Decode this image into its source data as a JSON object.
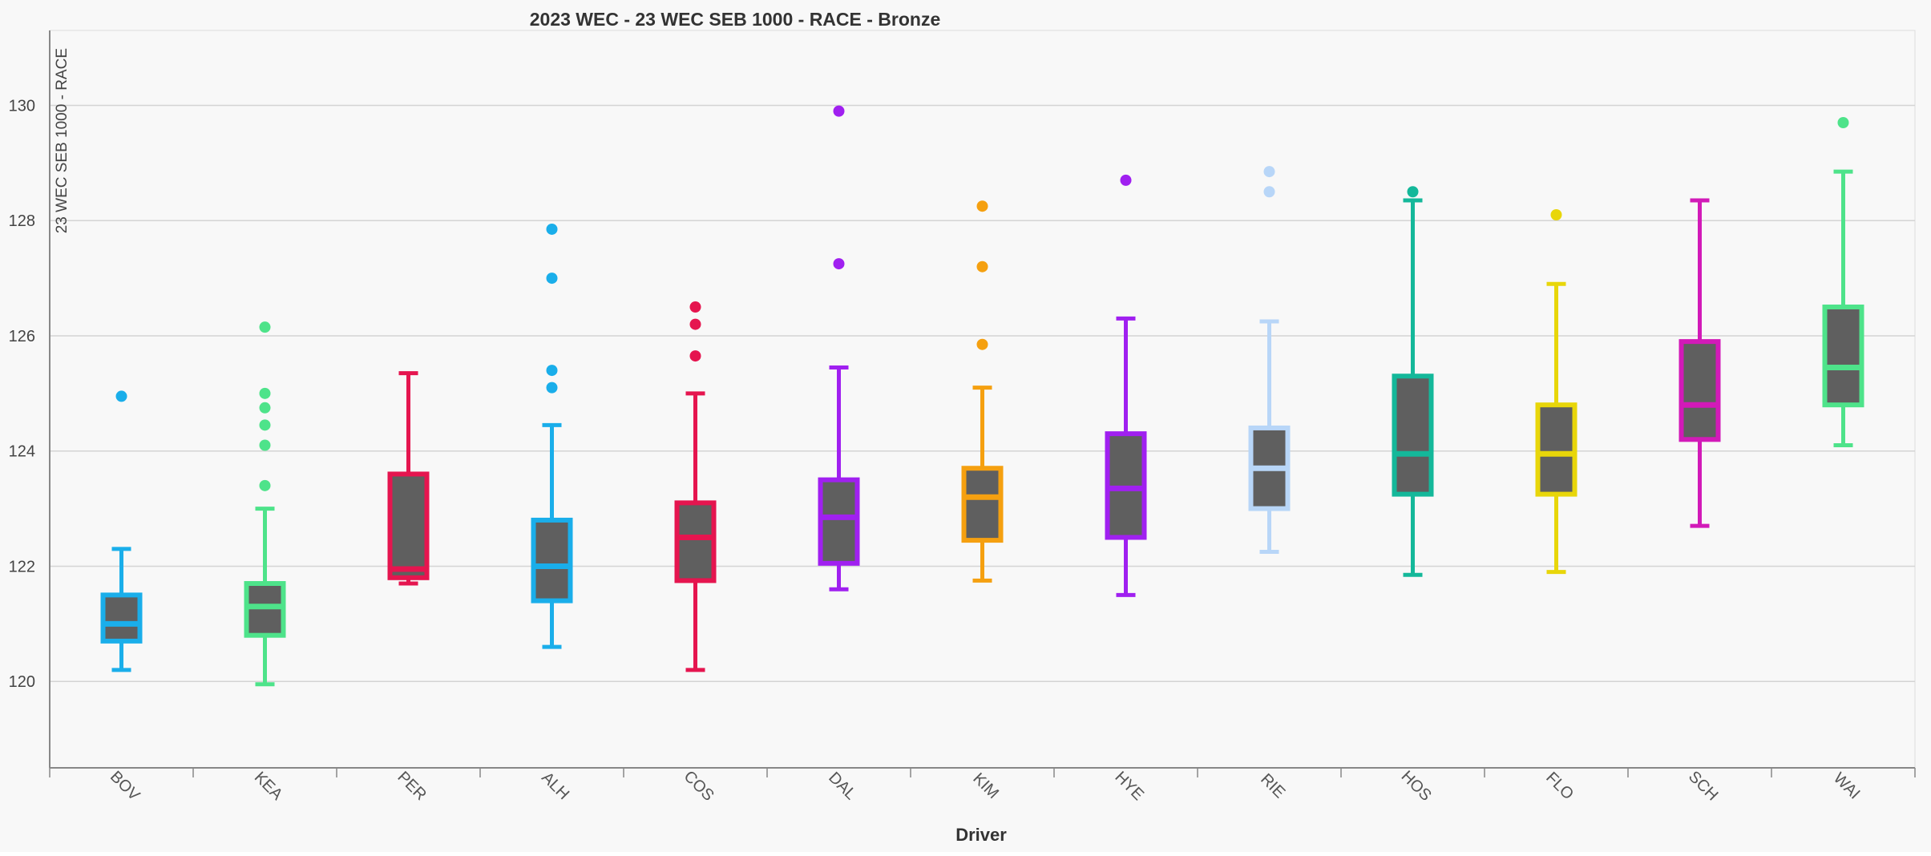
{
  "chart_data": {
    "type": "box",
    "title": "2023 WEC - 23 WEC SEB 1000 - RACE -  Bronze",
    "xlabel": "Driver",
    "ylabel": "23 WEC SEB 1000 - RACE",
    "ylim": [
      118.5,
      131.3
    ],
    "yticks": [
      120,
      122,
      124,
      126,
      128,
      130
    ],
    "grid": true,
    "categories": [
      "BOV",
      "KEA",
      "PER",
      "ALH",
      "COS",
      "DAL",
      "KIM",
      "HYE",
      "RIE",
      "HOS",
      "FLO",
      "SCH",
      "WAI"
    ],
    "colors": [
      "#1aaeea",
      "#4ee38a",
      "#e5154f",
      "#1aaeea",
      "#e5154f",
      "#a020f0",
      "#f5a010",
      "#a020f0",
      "#b8d6f8",
      "#14b89a",
      "#e8d60a",
      "#d21ab8",
      "#4ee38a"
    ],
    "boxes": [
      {
        "whisker_low": 120.2,
        "q1": 120.7,
        "median": 121.0,
        "q3": 121.5,
        "whisker_high": 122.3,
        "outliers": [
          124.95
        ]
      },
      {
        "whisker_low": 119.95,
        "q1": 120.8,
        "median": 121.3,
        "q3": 121.7,
        "whisker_high": 123.0,
        "outliers": [
          123.4,
          124.1,
          124.45,
          124.75,
          125.0,
          126.15
        ]
      },
      {
        "whisker_low": 121.7,
        "q1": 121.8,
        "median": 121.95,
        "q3": 123.6,
        "whisker_high": 125.35,
        "outliers": []
      },
      {
        "whisker_low": 120.6,
        "q1": 121.4,
        "median": 122.0,
        "q3": 122.8,
        "whisker_high": 124.45,
        "outliers": [
          125.1,
          125.4,
          127.0,
          127.85
        ]
      },
      {
        "whisker_low": 120.2,
        "q1": 121.75,
        "median": 122.5,
        "q3": 123.1,
        "whisker_high": 125.0,
        "outliers": [
          125.65,
          126.2,
          126.5
        ]
      },
      {
        "whisker_low": 121.6,
        "q1": 122.05,
        "median": 122.85,
        "q3": 123.5,
        "whisker_high": 125.45,
        "outliers": [
          127.25,
          129.9
        ]
      },
      {
        "whisker_low": 121.75,
        "q1": 122.45,
        "median": 123.2,
        "q3": 123.7,
        "whisker_high": 125.1,
        "outliers": [
          125.85,
          127.2,
          128.25
        ]
      },
      {
        "whisker_low": 121.5,
        "q1": 122.5,
        "median": 123.35,
        "q3": 124.3,
        "whisker_high": 126.3,
        "outliers": [
          128.7
        ]
      },
      {
        "whisker_low": 122.25,
        "q1": 123.0,
        "median": 123.7,
        "q3": 124.4,
        "whisker_high": 126.25,
        "outliers": [
          128.5,
          128.85
        ]
      },
      {
        "whisker_low": 121.85,
        "q1": 123.25,
        "median": 123.95,
        "q3": 125.3,
        "whisker_high": 128.35,
        "outliers": [
          128.5
        ]
      },
      {
        "whisker_low": 121.9,
        "q1": 123.25,
        "median": 123.95,
        "q3": 124.8,
        "whisker_high": 126.9,
        "outliers": [
          128.1
        ]
      },
      {
        "whisker_low": 122.7,
        "q1": 124.2,
        "median": 124.8,
        "q3": 125.9,
        "whisker_high": 128.35,
        "outliers": []
      },
      {
        "whisker_low": 124.1,
        "q1": 124.8,
        "median": 125.45,
        "q3": 126.5,
        "whisker_high": 128.85,
        "outliers": [
          129.7
        ]
      }
    ]
  }
}
